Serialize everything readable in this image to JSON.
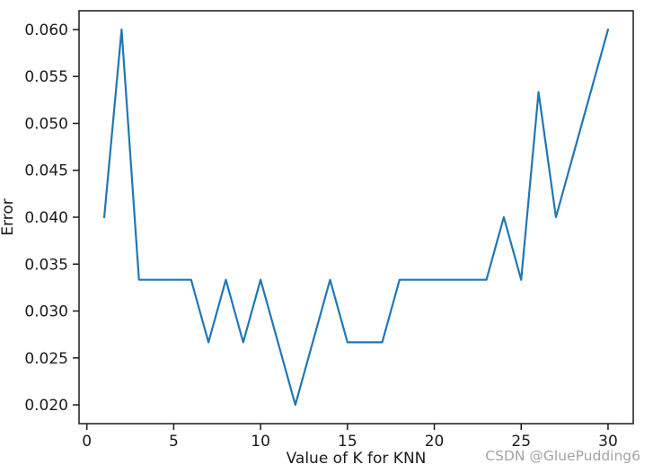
{
  "watermark": "CSDN @GluePudding6",
  "chart_data": {
    "type": "line",
    "title": "",
    "xlabel": "Value of K for KNN",
    "ylabel": "Error",
    "x": [
      1,
      2,
      3,
      4,
      5,
      6,
      7,
      8,
      9,
      10,
      11,
      12,
      13,
      14,
      15,
      16,
      17,
      18,
      19,
      20,
      21,
      22,
      23,
      24,
      25,
      26,
      27,
      28,
      29,
      30
    ],
    "y": [
      0.04,
      0.06,
      0.0333333,
      0.0333333,
      0.0333333,
      0.0333333,
      0.0266667,
      0.0333333,
      0.0266667,
      0.0333333,
      0.0266667,
      0.02,
      0.0266667,
      0.0333333,
      0.0266667,
      0.0266667,
      0.0266667,
      0.0333333,
      0.0333333,
      0.0333333,
      0.0333333,
      0.0333333,
      0.0333333,
      0.04,
      0.0333333,
      0.0533333,
      0.04,
      0.0466667,
      0.0533333,
      0.06
    ],
    "xlim": [
      -0.45,
      31.45
    ],
    "ylim": [
      0.018,
      0.062
    ],
    "xticks": [
      0,
      5,
      10,
      15,
      20,
      25,
      30
    ],
    "yticks": [
      0.02,
      0.025,
      0.03,
      0.035,
      0.04,
      0.045,
      0.05,
      0.055,
      0.06
    ],
    "ytick_decimals": 3,
    "line_color": "#1f77b4",
    "axis_color": "#1a1a1a",
    "grid": false,
    "legend_position": "none"
  }
}
